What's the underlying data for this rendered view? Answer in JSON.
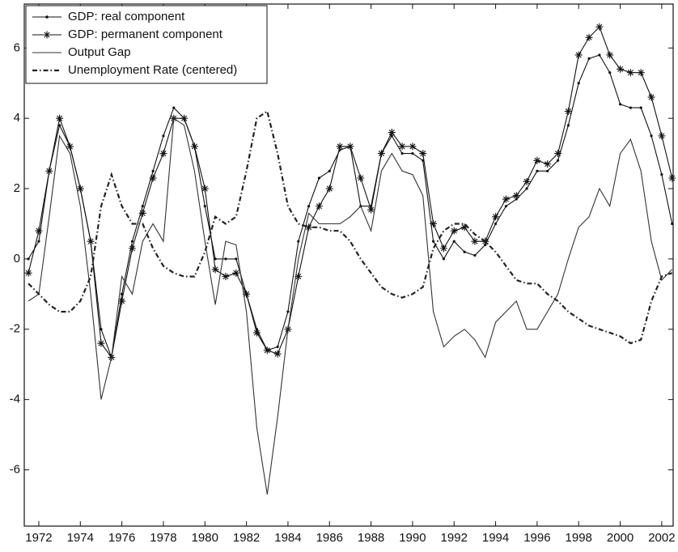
{
  "chart_data": {
    "type": "line",
    "x": [
      1971.5,
      1972,
      1972.5,
      1973,
      1973.5,
      1974,
      1974.5,
      1975,
      1975.5,
      1976,
      1976.5,
      1977,
      1977.5,
      1978,
      1978.5,
      1979,
      1979.5,
      1980,
      1980.5,
      1981,
      1981.5,
      1982,
      1982.5,
      1983,
      1983.5,
      1984,
      1984.5,
      1985,
      1985.5,
      1986,
      1986.5,
      1987,
      1987.5,
      1988,
      1988.5,
      1989,
      1989.5,
      1990,
      1990.5,
      1991,
      1991.5,
      1992,
      1992.5,
      1993,
      1993.5,
      1994,
      1994.5,
      1995,
      1995.5,
      1996,
      1996.5,
      1997,
      1997.5,
      1998,
      1998.5,
      1999,
      1999.5,
      2000,
      2000.5,
      2001,
      2001.5,
      2002,
      2002.5
    ],
    "series": [
      {
        "name": "GDP: real component",
        "color": "#111111",
        "style": "solid",
        "marker": "dot",
        "values": [
          0.0,
          0.5,
          2.5,
          3.8,
          3.2,
          2.0,
          0.5,
          -2.0,
          -2.8,
          -1.0,
          0.5,
          1.5,
          2.5,
          3.5,
          4.3,
          4.0,
          3.2,
          1.5,
          0.0,
          0.0,
          0.0,
          -1.0,
          -2.0,
          -2.6,
          -2.5,
          -1.5,
          0.5,
          1.5,
          2.3,
          2.5,
          3.1,
          3.2,
          1.5,
          1.5,
          3.0,
          3.5,
          3.0,
          3.0,
          2.8,
          0.5,
          0.0,
          0.5,
          0.2,
          0.1,
          0.4,
          1.0,
          1.5,
          1.7,
          2.0,
          2.5,
          2.5,
          2.8,
          3.8,
          5.0,
          5.7,
          5.8,
          5.3,
          4.4,
          4.3,
          4.3,
          3.5,
          2.4,
          1.0
        ]
      },
      {
        "name": "GDP: permanent component",
        "color": "#111111",
        "style": "solid",
        "marker": "star",
        "values": [
          -0.4,
          0.8,
          2.5,
          4.0,
          3.2,
          2.0,
          0.5,
          -2.4,
          -2.8,
          -1.2,
          0.3,
          1.3,
          2.3,
          3.0,
          4.0,
          4.0,
          3.2,
          2.0,
          -0.3,
          -0.5,
          -0.4,
          -1.0,
          -2.1,
          -2.6,
          -2.7,
          -2.0,
          -0.5,
          0.9,
          1.5,
          2.0,
          3.2,
          3.2,
          2.3,
          1.4,
          3.0,
          3.6,
          3.2,
          3.2,
          3.0,
          1.0,
          0.3,
          0.8,
          0.9,
          0.5,
          0.5,
          1.2,
          1.7,
          1.8,
          2.2,
          2.8,
          2.7,
          3.0,
          4.2,
          5.8,
          6.3,
          6.6,
          5.8,
          5.4,
          5.3,
          5.3,
          4.6,
          3.5,
          2.3
        ]
      },
      {
        "name": "Output Gap",
        "color": "#333333",
        "style": "solid",
        "marker": "none",
        "values": [
          -1.2,
          -1.0,
          1.2,
          3.5,
          3.0,
          1.5,
          -1.0,
          -4.0,
          -2.8,
          -0.5,
          -1.0,
          0.5,
          1.0,
          0.5,
          4.0,
          3.8,
          2.5,
          0.5,
          -1.3,
          0.5,
          0.4,
          -1.5,
          -4.8,
          -6.7,
          -4.5,
          -2.0,
          0.0,
          1.3,
          1.0,
          1.0,
          1.0,
          1.2,
          1.5,
          0.8,
          2.5,
          3.0,
          2.5,
          2.4,
          1.8,
          -1.5,
          -2.5,
          -2.2,
          -2.0,
          -2.3,
          -2.8,
          -1.8,
          -1.5,
          -1.2,
          -2.0,
          -2.0,
          -1.5,
          -1.0,
          0.0,
          0.9,
          1.2,
          2.0,
          1.5,
          3.0,
          3.4,
          2.5,
          0.5,
          -0.6,
          -0.3
        ]
      },
      {
        "name": "Unemployment Rate (centered)",
        "color": "#222222",
        "style": "dashdot",
        "marker": "none",
        "values": [
          -0.7,
          -1.0,
          -1.3,
          -1.5,
          -1.5,
          -1.2,
          -0.5,
          1.5,
          2.4,
          1.5,
          1.0,
          1.0,
          0.3,
          -0.2,
          -0.4,
          -0.5,
          -0.5,
          0.2,
          1.2,
          1.0,
          1.2,
          2.5,
          4.0,
          4.2,
          3.0,
          1.5,
          1.0,
          0.9,
          0.9,
          0.8,
          0.8,
          0.5,
          0.0,
          -0.4,
          -0.8,
          -1.0,
          -1.1,
          -1.0,
          -0.8,
          0.3,
          0.8,
          1.0,
          1.0,
          0.7,
          0.5,
          0.2,
          -0.2,
          -0.6,
          -0.7,
          -0.7,
          -1.0,
          -1.2,
          -1.5,
          -1.7,
          -1.9,
          -2.0,
          -2.1,
          -2.2,
          -2.4,
          -2.3,
          -1.2,
          -0.5,
          -0.4
        ]
      }
    ],
    "xlim": [
      1971.3,
      2002.55
    ],
    "ylim": [
      -7.6,
      7.25
    ],
    "xticks": [
      1972,
      1974,
      1976,
      1978,
      1980,
      1982,
      1984,
      1986,
      1988,
      1990,
      1992,
      1994,
      1996,
      1998,
      2000,
      2002
    ],
    "yticks": [
      -6,
      -4,
      -2,
      0,
      2,
      4,
      6
    ],
    "legend": "upper-left"
  }
}
